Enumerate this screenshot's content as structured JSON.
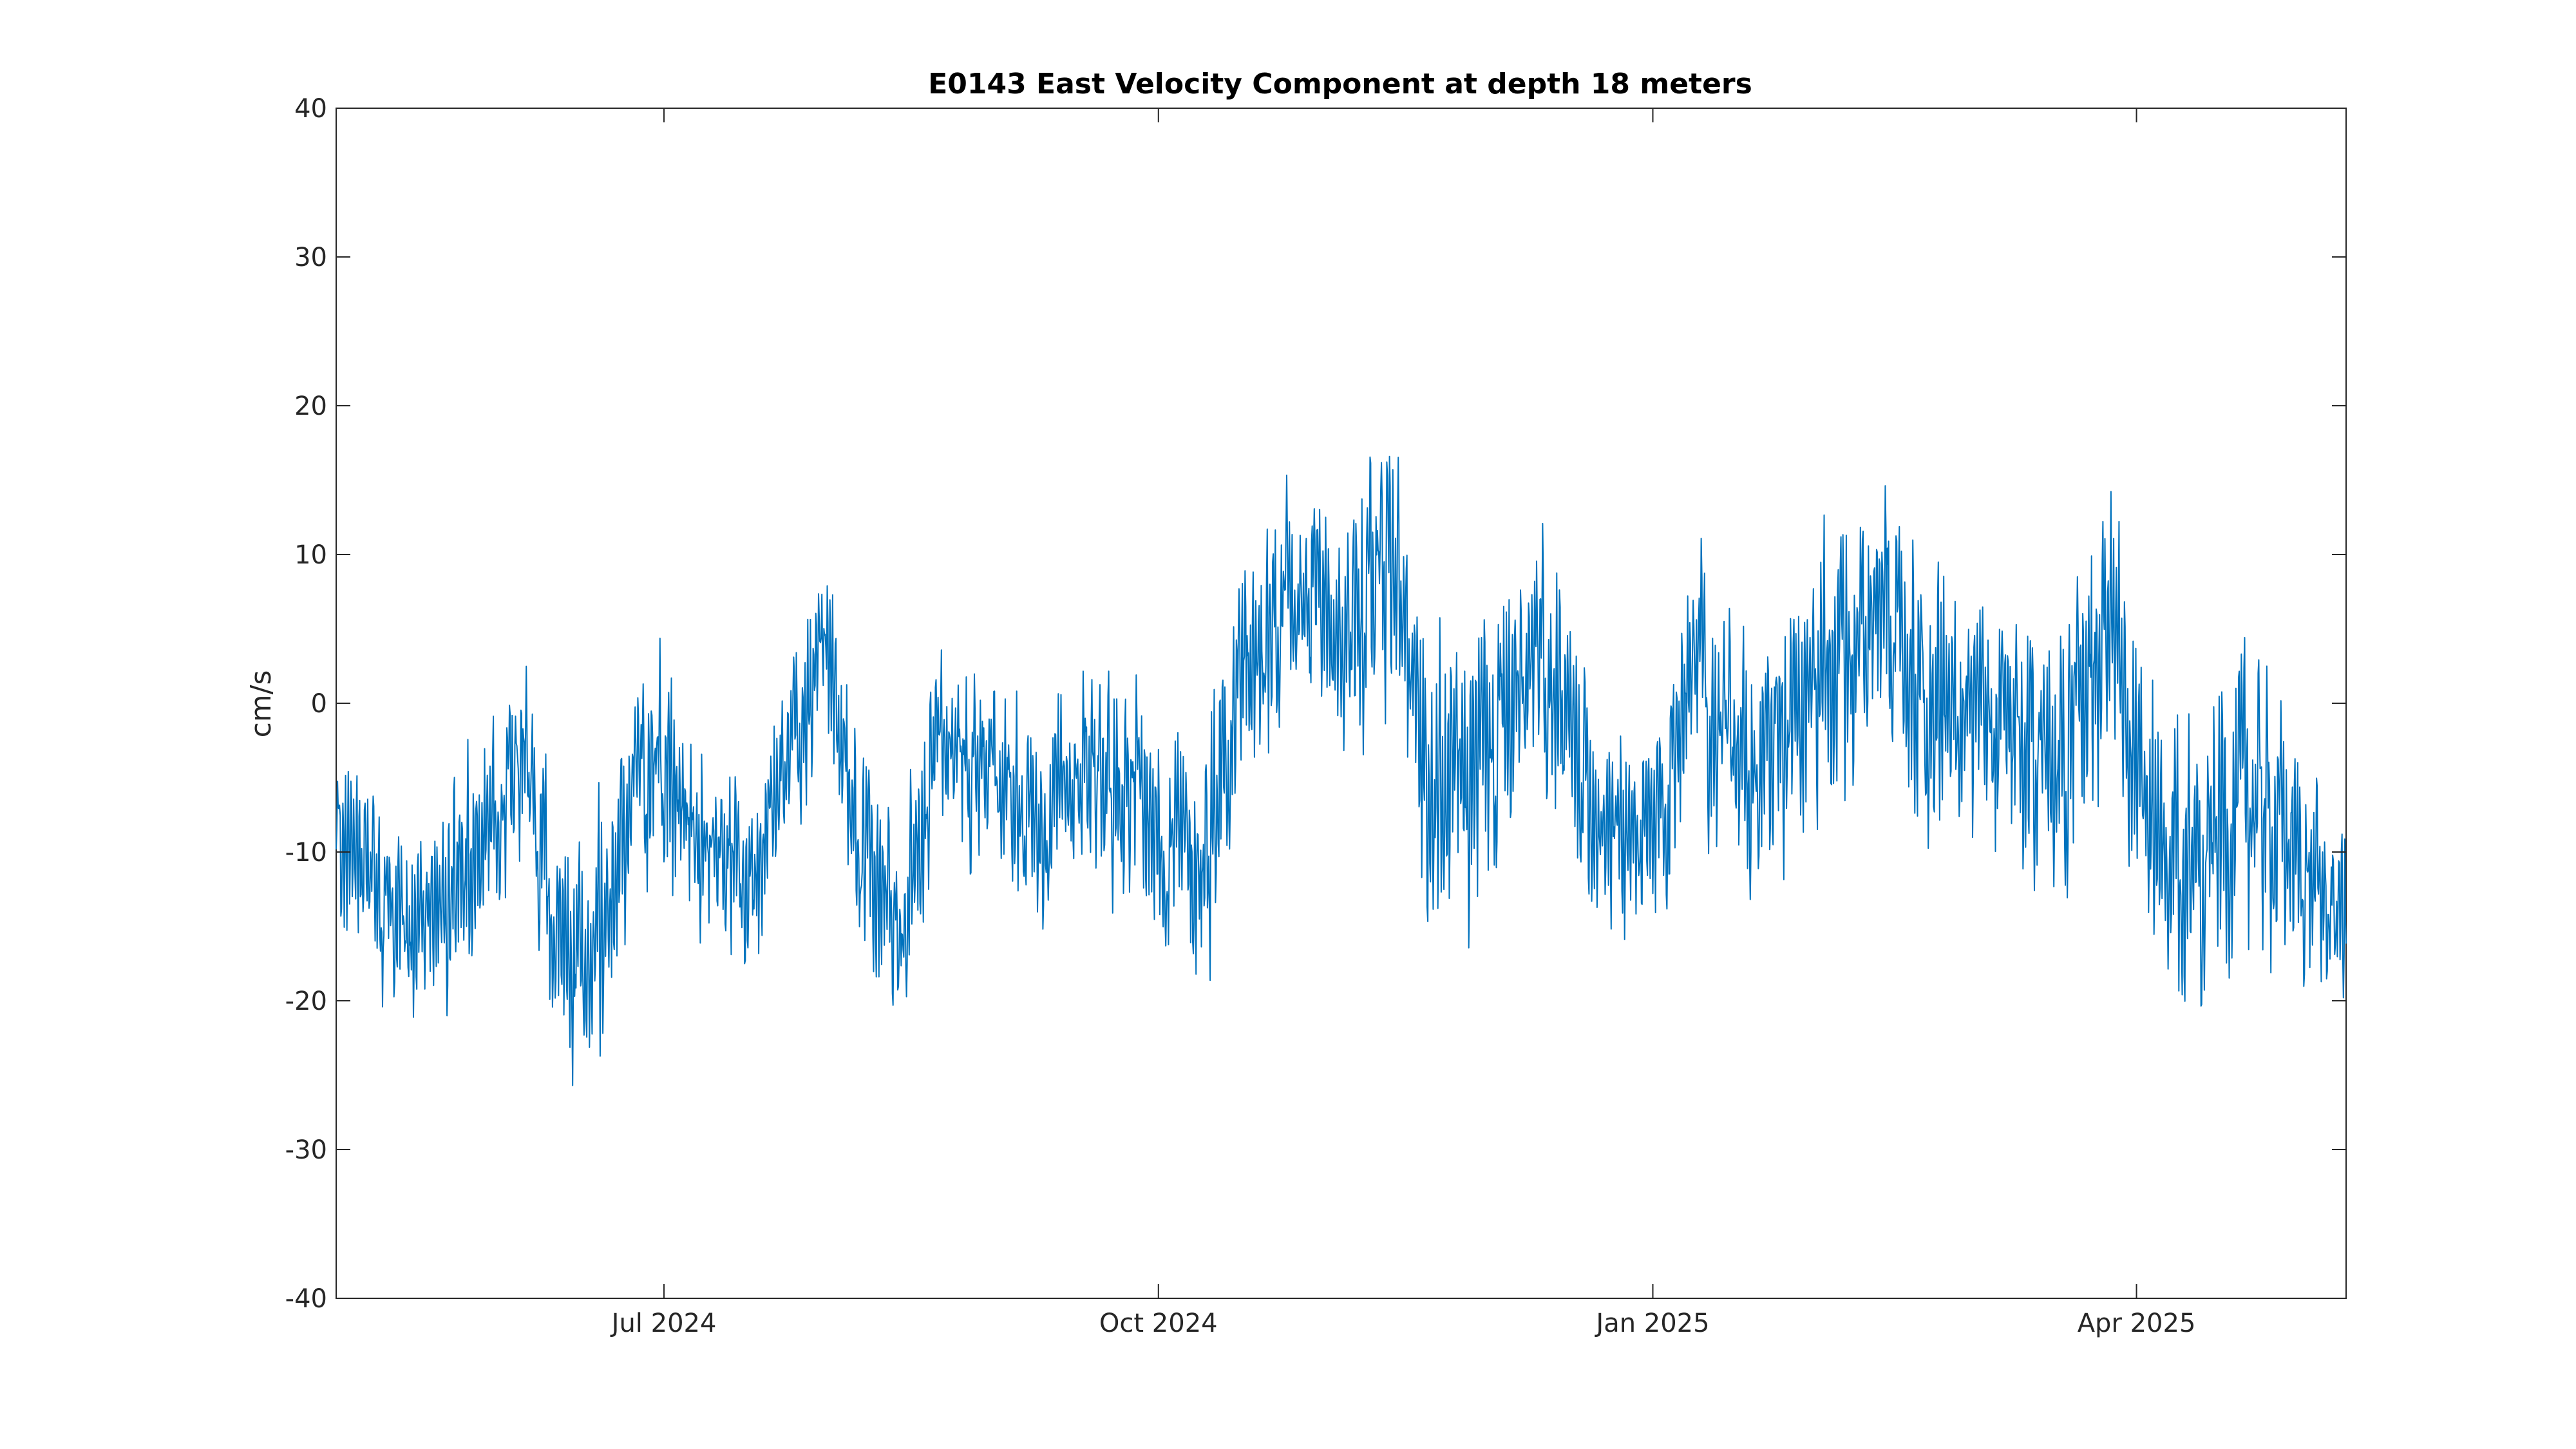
{
  "chart_data": {
    "type": "line",
    "title": "E0143 East Velocity Component at depth 18 meters",
    "xlabel": "",
    "ylabel": "cm/s",
    "xlim": [
      "2024-05-01",
      "2025-05-10"
    ],
    "ylim": [
      -40,
      40
    ],
    "grid": false,
    "legend": "none",
    "line_color": "#0072BD",
    "x_ticks": [
      {
        "date": "2024-07-01",
        "label": "Jul 2024"
      },
      {
        "date": "2024-10-01",
        "label": "Oct 2024"
      },
      {
        "date": "2025-01-01",
        "label": "Jan 2025"
      },
      {
        "date": "2025-04-01",
        "label": "Apr 2025"
      }
    ],
    "y_ticks": [
      {
        "value": 40,
        "label": "40"
      },
      {
        "value": 30,
        "label": "30"
      },
      {
        "value": 20,
        "label": "20"
      },
      {
        "value": 10,
        "label": "10"
      },
      {
        "value": 0,
        "label": "0"
      },
      {
        "value": -10,
        "label": "-10"
      },
      {
        "value": -20,
        "label": "-20"
      },
      {
        "value": -30,
        "label": "-30"
      },
      {
        "value": -40,
        "label": "-40"
      }
    ],
    "series": [
      {
        "x": [
          "2024-05-01",
          "2024-05-08",
          "2024-05-15",
          "2024-05-22",
          "2024-05-29",
          "2024-06-05",
          "2024-06-12",
          "2024-06-19",
          "2024-06-26",
          "2024-07-03",
          "2024-07-10",
          "2024-07-17",
          "2024-07-24",
          "2024-07-31",
          "2024-08-07",
          "2024-08-14",
          "2024-08-21",
          "2024-08-28",
          "2024-09-04",
          "2024-09-11",
          "2024-09-18",
          "2024-09-25",
          "2024-10-02",
          "2024-10-09",
          "2024-10-16",
          "2024-10-23",
          "2024-10-30",
          "2024-11-06",
          "2024-11-13",
          "2024-11-20",
          "2024-11-27",
          "2024-12-04",
          "2024-12-11",
          "2024-12-18",
          "2024-12-25",
          "2025-01-01",
          "2025-01-08",
          "2025-01-15",
          "2025-01-22",
          "2025-01-29",
          "2025-02-05",
          "2025-02-12",
          "2025-02-19",
          "2025-02-26",
          "2025-03-05",
          "2025-03-12",
          "2025-03-19",
          "2025-03-26",
          "2025-04-02",
          "2025-04-09",
          "2025-04-16",
          "2025-04-23",
          "2025-04-30",
          "2025-05-07"
        ],
        "mean": [
          -8,
          -13,
          -15,
          -12,
          -9,
          -3,
          -18,
          -16,
          -5,
          -6,
          -8,
          -12,
          -4,
          4,
          -12,
          -14,
          -3,
          -4,
          -6,
          -8,
          -3,
          -5,
          -9,
          -11,
          2,
          4,
          6,
          5,
          11,
          -6,
          -6,
          -2,
          2,
          -4,
          -8,
          -10,
          4,
          -3,
          -4,
          1,
          2,
          8,
          3,
          -1,
          -3,
          -1,
          -4,
          5,
          -7,
          -12,
          -8,
          -6,
          -10,
          -14
        ],
        "spread": [
          10,
          9,
          8,
          10,
          9,
          8,
          11,
          12,
          9,
          10,
          9,
          9,
          8,
          8,
          10,
          9,
          9,
          8,
          9,
          9,
          9,
          10,
          10,
          11,
          11,
          11,
          11,
          12,
          14,
          14,
          13,
          12,
          11,
          11,
          9,
          10,
          10,
          11,
          11,
          12,
          13,
          12,
          14,
          11,
          12,
          13,
          12,
          13,
          12,
          12,
          13,
          12,
          11,
          9
        ]
      }
    ]
  }
}
